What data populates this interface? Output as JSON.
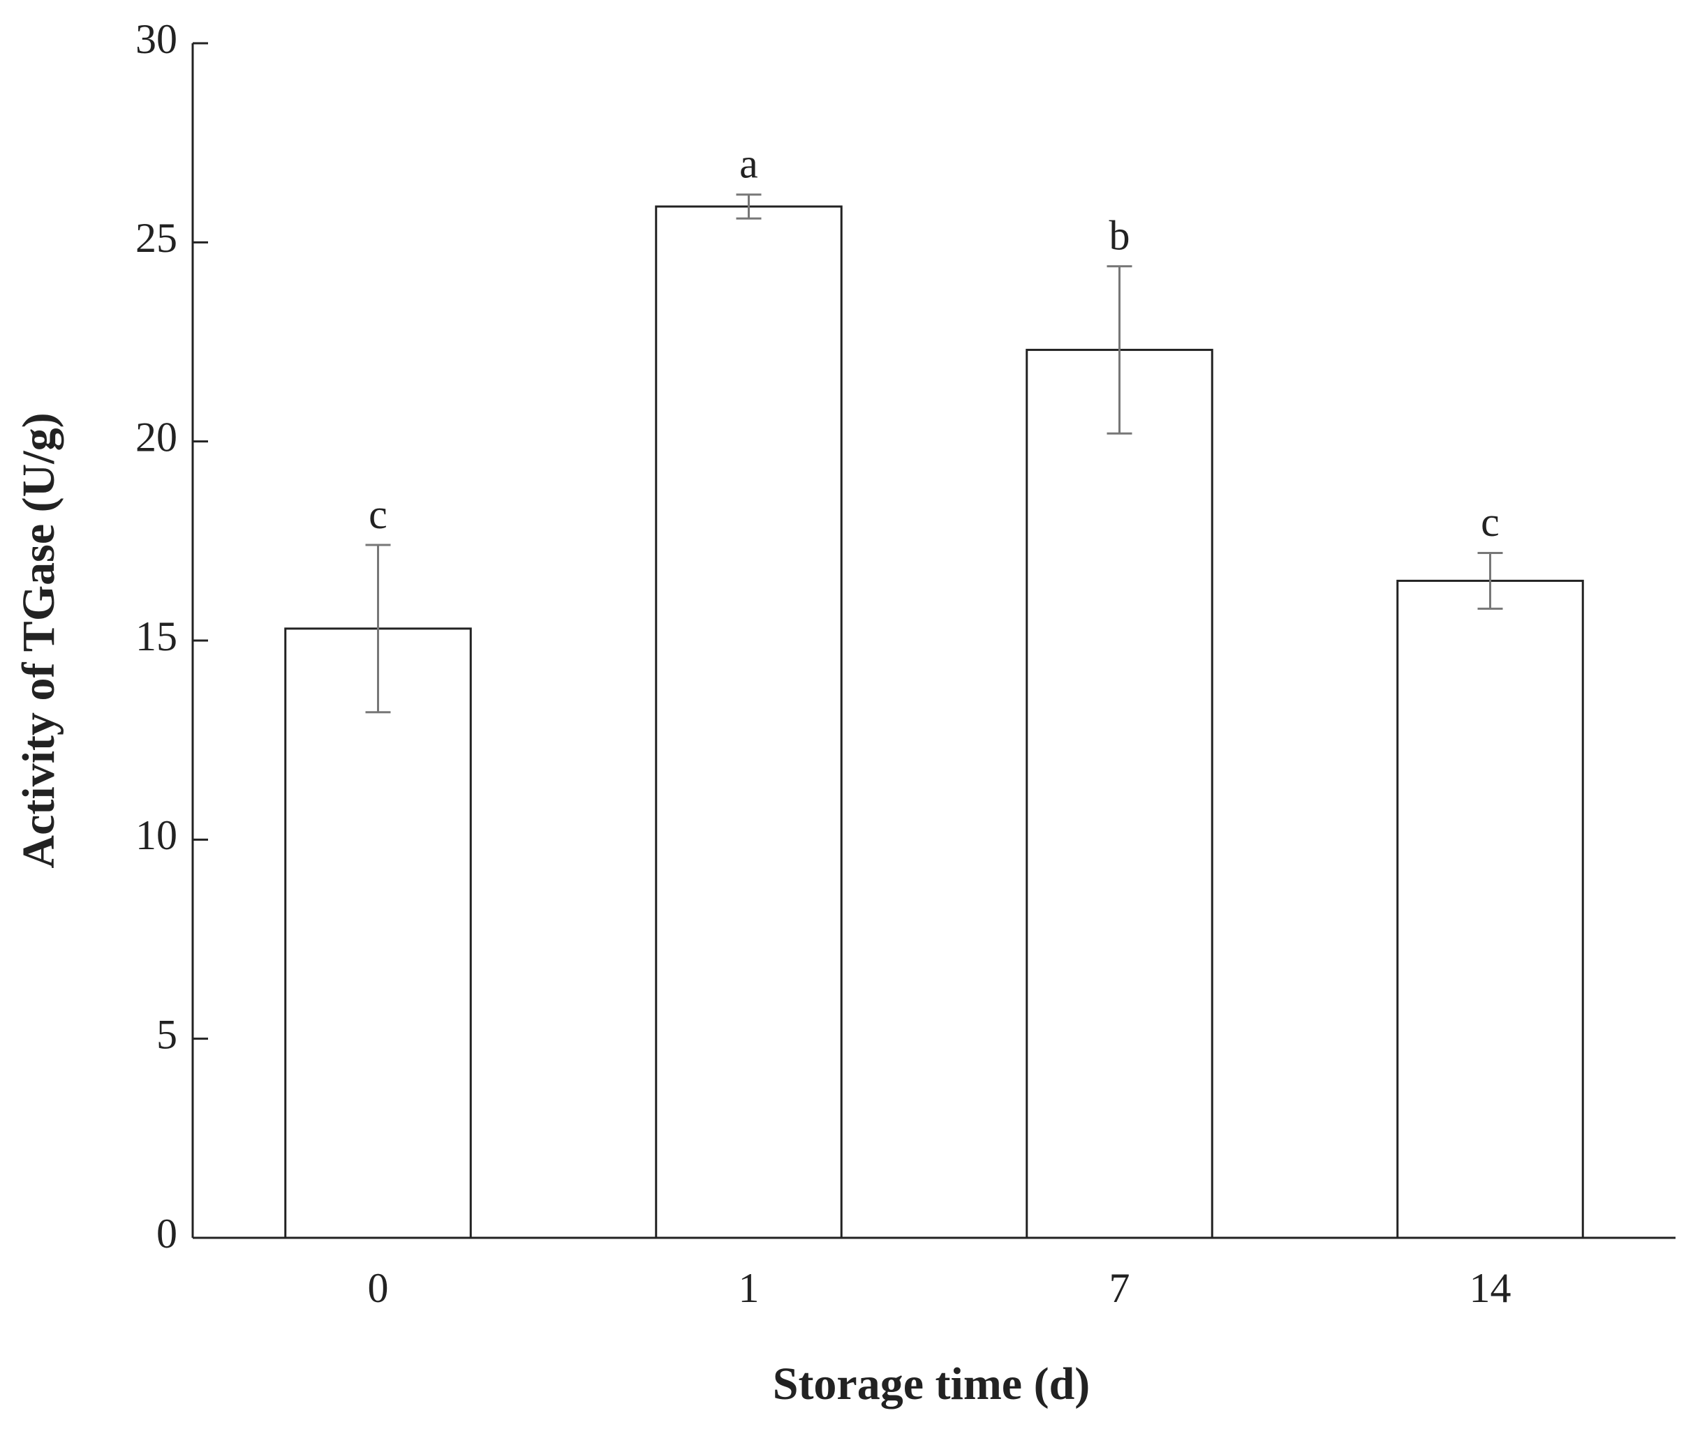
{
  "chart_data": {
    "type": "bar",
    "x_label": "Storage time (d)",
    "y_label": "Activity of TGase (U/g)",
    "categories": [
      "0",
      "1",
      "7",
      "14"
    ],
    "values": [
      15.3,
      25.9,
      22.3,
      16.5
    ],
    "errors": [
      2.1,
      0.3,
      2.1,
      0.7
    ],
    "labels": [
      "c",
      "a",
      "b",
      "c"
    ],
    "color": "#ffffff",
    "edge_color": "#222222",
    "ylim": [
      0,
      30
    ],
    "yticks": [
      0,
      5,
      10,
      15,
      20,
      25,
      30
    ],
    "grid": false
  }
}
